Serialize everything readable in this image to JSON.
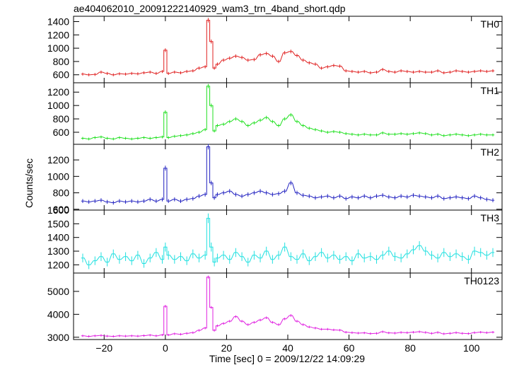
{
  "chart_data": {
    "type": "line",
    "title": "ae404062010_20091222140929_wam3_trn_4band_short.qdp",
    "xlabel": "Time [sec] 0 = 2009/12/22 14:09:29",
    "ylabel": "Counts/sec",
    "xlim": [
      -30,
      110
    ],
    "x_ticks": [
      -20,
      0,
      20,
      40,
      60,
      80,
      100
    ],
    "bin_width": 1,
    "grid": false,
    "panels": [
      {
        "name": "TH0",
        "color": "#e02020",
        "ylim": [
          480,
          1480
        ],
        "y_ticks": [
          600,
          800,
          1000,
          1200,
          1400
        ],
        "x": [
          -27,
          -25,
          -23,
          -21,
          -19,
          -17,
          -15,
          -13,
          -11,
          -9,
          -7,
          -5,
          -3,
          -1,
          0,
          1,
          3,
          5,
          7,
          9,
          11,
          13,
          14,
          15,
          16,
          17,
          19,
          21,
          23,
          25,
          27,
          29,
          31,
          33,
          35,
          37,
          39,
          41,
          43,
          45,
          47,
          49,
          51,
          53,
          55,
          57,
          59,
          61,
          63,
          65,
          67,
          69,
          71,
          73,
          75,
          77,
          79,
          81,
          83,
          85,
          87,
          89,
          91,
          93,
          95,
          97,
          99,
          101,
          103,
          105,
          107
        ],
        "values": [
          610,
          600,
          605,
          640,
          620,
          600,
          615,
          610,
          620,
          615,
          630,
          640,
          620,
          650,
          970,
          620,
          640,
          630,
          650,
          660,
          700,
          720,
          1420,
          1100,
          700,
          760,
          820,
          850,
          880,
          860,
          820,
          830,
          900,
          920,
          880,
          800,
          930,
          950,
          890,
          820,
          780,
          760,
          700,
          720,
          740,
          730,
          660,
          650,
          640,
          650,
          630,
          640,
          680,
          650,
          640,
          660,
          650,
          640,
          650,
          640,
          640,
          660,
          630,
          640,
          660,
          650,
          640,
          650,
          660,
          650,
          660
        ]
      },
      {
        "name": "TH1",
        "color": "#20e020",
        "ylim": [
          420,
          1340
        ],
        "y_ticks": [
          600,
          800,
          1000,
          1200
        ],
        "x": [
          -27,
          -25,
          -23,
          -21,
          -19,
          -17,
          -15,
          -13,
          -11,
          -9,
          -7,
          -5,
          -3,
          -1,
          0,
          1,
          3,
          5,
          7,
          9,
          11,
          13,
          14,
          15,
          16,
          17,
          19,
          21,
          23,
          25,
          27,
          29,
          31,
          33,
          35,
          37,
          39,
          41,
          43,
          45,
          47,
          49,
          51,
          53,
          55,
          57,
          59,
          61,
          63,
          65,
          67,
          69,
          71,
          73,
          75,
          77,
          79,
          81,
          83,
          85,
          87,
          89,
          91,
          93,
          95,
          97,
          99,
          101,
          103,
          105,
          107
        ],
        "values": [
          510,
          500,
          520,
          530,
          510,
          500,
          520,
          510,
          500,
          510,
          520,
          510,
          520,
          530,
          900,
          520,
          540,
          550,
          560,
          580,
          600,
          640,
          1290,
          1000,
          620,
          700,
          720,
          760,
          800,
          760,
          700,
          740,
          780,
          820,
          760,
          700,
          800,
          860,
          760,
          700,
          660,
          640,
          620,
          600,
          610,
          600,
          580,
          570,
          560,
          570,
          560,
          560,
          590,
          570,
          570,
          580,
          570,
          580,
          590,
          580,
          560,
          570,
          550,
          560,
          570,
          560,
          550,
          560,
          570,
          560,
          560
        ]
      },
      {
        "name": "TH2",
        "color": "#2020c0",
        "ylim": [
          590,
          1390
        ],
        "y_ticks": [
          600,
          800,
          1000,
          1200
        ],
        "x": [
          -27,
          -25,
          -23,
          -21,
          -19,
          -17,
          -15,
          -13,
          -11,
          -9,
          -7,
          -5,
          -3,
          -1,
          0,
          1,
          3,
          5,
          7,
          9,
          11,
          13,
          14,
          15,
          16,
          17,
          19,
          21,
          23,
          25,
          27,
          29,
          31,
          33,
          35,
          37,
          39,
          41,
          43,
          45,
          47,
          49,
          51,
          53,
          55,
          57,
          59,
          61,
          63,
          65,
          67,
          69,
          71,
          73,
          75,
          77,
          79,
          81,
          83,
          85,
          87,
          89,
          91,
          93,
          95,
          97,
          99,
          101,
          103,
          105,
          107
        ],
        "values": [
          700,
          690,
          700,
          710,
          690,
          680,
          700,
          690,
          700,
          690,
          700,
          720,
          700,
          720,
          1100,
          700,
          720,
          700,
          720,
          730,
          760,
          780,
          1360,
          920,
          740,
          780,
          800,
          820,
          780,
          760,
          780,
          800,
          820,
          800,
          780,
          790,
          820,
          920,
          800,
          770,
          760,
          740,
          750,
          760,
          740,
          760,
          730,
          750,
          740,
          760,
          740,
          760,
          770,
          750,
          740,
          760,
          750,
          770,
          760,
          750,
          740,
          760,
          730,
          740,
          750,
          740,
          730,
          760,
          740,
          720,
          710
        ]
      },
      {
        "name": "TH3",
        "color": "#20e0e0",
        "ylim": [
          1140,
          1600
        ],
        "y_ticks": [
          1200,
          1300,
          1400,
          1500,
          1600
        ],
        "x": [
          -27,
          -25,
          -23,
          -21,
          -19,
          -17,
          -15,
          -13,
          -11,
          -9,
          -7,
          -5,
          -3,
          -1,
          0,
          1,
          3,
          5,
          7,
          9,
          11,
          13,
          14,
          15,
          16,
          17,
          19,
          21,
          23,
          25,
          27,
          29,
          31,
          33,
          35,
          37,
          39,
          41,
          43,
          45,
          47,
          49,
          51,
          53,
          55,
          57,
          59,
          61,
          63,
          65,
          67,
          69,
          71,
          73,
          75,
          77,
          79,
          81,
          83,
          85,
          87,
          89,
          91,
          93,
          95,
          97,
          99,
          101,
          103,
          105,
          107
        ],
        "values": [
          1250,
          1200,
          1230,
          1260,
          1220,
          1280,
          1240,
          1260,
          1230,
          1270,
          1210,
          1250,
          1290,
          1240,
          1330,
          1270,
          1240,
          1260,
          1230,
          1280,
          1250,
          1270,
          1540,
          1330,
          1220,
          1250,
          1270,
          1240,
          1290,
          1260,
          1220,
          1270,
          1250,
          1300,
          1240,
          1270,
          1330,
          1260,
          1240,
          1280,
          1230,
          1260,
          1290,
          1250,
          1270,
          1240,
          1260,
          1230,
          1280,
          1250,
          1260,
          1240,
          1270,
          1300,
          1260,
          1250,
          1280,
          1310,
          1340,
          1300,
          1270,
          1250,
          1290,
          1260,
          1280,
          1260,
          1240,
          1300,
          1290,
          1270,
          1290
        ]
      },
      {
        "name": "TH0123",
        "color": "#e020e0",
        "ylim": [
          2900,
          5800
        ],
        "y_ticks": [
          3000,
          4000,
          5000
        ],
        "x": [
          -27,
          -25,
          -23,
          -21,
          -19,
          -17,
          -15,
          -13,
          -11,
          -9,
          -7,
          -5,
          -3,
          -1,
          0,
          1,
          3,
          5,
          7,
          9,
          11,
          13,
          14,
          15,
          16,
          17,
          19,
          21,
          23,
          25,
          27,
          29,
          31,
          33,
          35,
          37,
          39,
          41,
          43,
          45,
          47,
          49,
          51,
          53,
          55,
          57,
          59,
          61,
          63,
          65,
          67,
          69,
          71,
          73,
          75,
          77,
          79,
          81,
          83,
          85,
          87,
          89,
          91,
          93,
          95,
          97,
          99,
          101,
          103,
          105,
          107
        ],
        "values": [
          3060,
          3040,
          3060,
          3080,
          3050,
          3040,
          3060,
          3050,
          3060,
          3050,
          3070,
          3090,
          3060,
          3100,
          4350,
          3100,
          3150,
          3130,
          3170,
          3200,
          3300,
          3400,
          5620,
          4300,
          3300,
          3500,
          3600,
          3700,
          3900,
          3700,
          3550,
          3650,
          3750,
          3850,
          3650,
          3550,
          3800,
          3950,
          3700,
          3550,
          3450,
          3400,
          3350,
          3350,
          3320,
          3310,
          3220,
          3200,
          3180,
          3190,
          3160,
          3170,
          3240,
          3190,
          3180,
          3210,
          3200,
          3220,
          3240,
          3210,
          3170,
          3210,
          3150,
          3170,
          3200,
          3170,
          3160,
          3200,
          3220,
          3200,
          3220
        ]
      }
    ]
  }
}
